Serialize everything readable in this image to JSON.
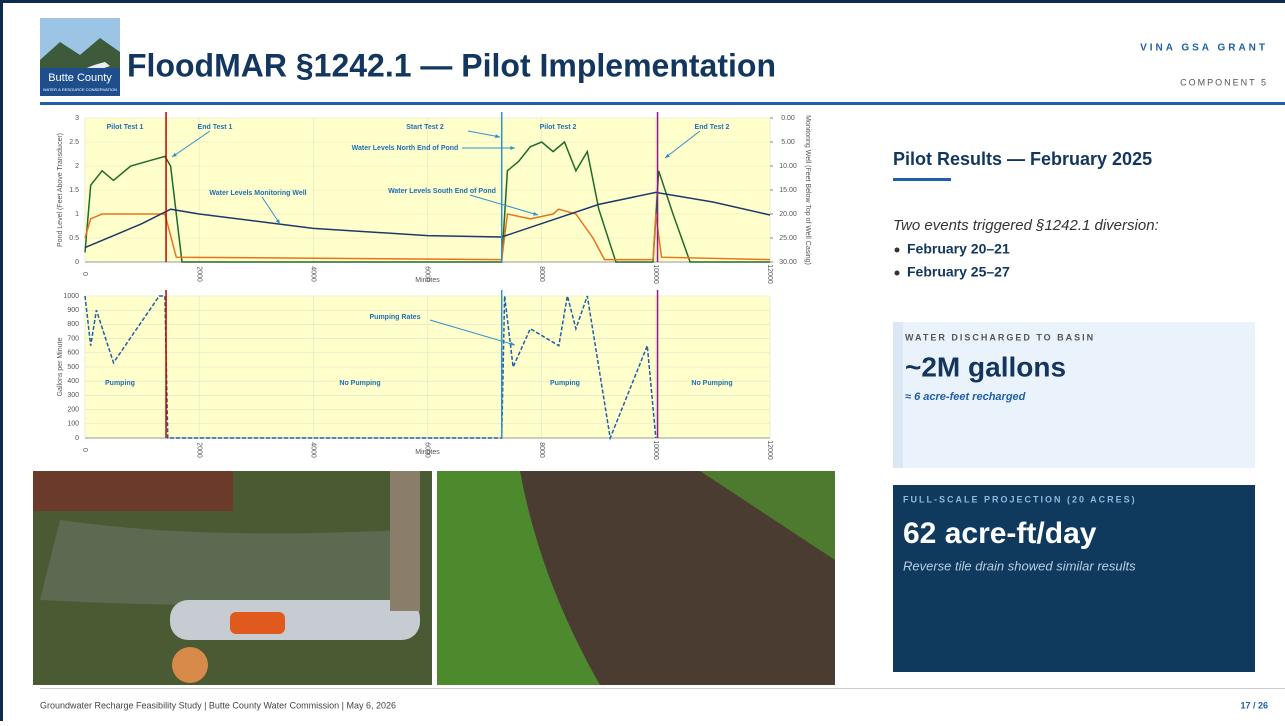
{
  "header": {
    "logo_name": "Butte County",
    "logo_sub": "WATER & RESOURCE CONSERVATION",
    "title": "FloodMAR §1242.1 — Pilot Implementation",
    "grant": "VINA GSA GRANT",
    "component": "COMPONENT 5"
  },
  "charts": [
    {
      "type": "line",
      "xlabel": "Minutes",
      "ylabel": "Pond Level (Feet Above Transducer)",
      "y2label": "Monitoring Well (Feet Below Top of Well Casing)",
      "xlim": [
        0,
        12000
      ],
      "xticks": [
        0,
        2000,
        4000,
        6000,
        8000,
        10000,
        12000
      ],
      "ylim": [
        0,
        3
      ],
      "yticks": [
        0,
        0.5,
        1,
        1.5,
        2,
        2.5,
        3
      ],
      "y2lim": [
        30,
        0
      ],
      "y2ticks": [
        {
          "value": 0,
          "label": "0.00"
        },
        {
          "value": 5,
          "label": "5.00"
        },
        {
          "value": 10,
          "label": "10.00"
        },
        {
          "value": 15,
          "label": "15.00"
        },
        {
          "value": 20,
          "label": "20.00"
        },
        {
          "value": 25,
          "label": "25.00"
        },
        {
          "value": 30,
          "label": "30.00"
        }
      ],
      "grid": true,
      "background": "#ffffcc",
      "events": [
        {
          "x": 1420,
          "color": "#c00000"
        },
        {
          "x": 7300,
          "color": "#2e8fd0"
        },
        {
          "x": 10030,
          "color": "#8b1a8b"
        }
      ],
      "annotations": [
        "Pilot Test 1",
        "End Test 1",
        "Start Test 2",
        "Pilot Test 2",
        "End Test 2",
        "Water Levels North End of Pond",
        "Water Levels Monitoring Well",
        "Water Levels South End of Pond"
      ],
      "series": [
        {
          "color": "#1e6b2a",
          "x": [
            0,
            100,
            300,
            500,
            800,
            1100,
            1400,
            1500,
            1700,
            7300,
            7400,
            7600,
            7800,
            8000,
            8200,
            8400,
            8600,
            8800,
            9000,
            9300,
            9950,
            10050,
            10300,
            10600,
            12000
          ],
          "values": [
            0.2,
            1.6,
            1.9,
            1.7,
            2.0,
            2.1,
            2.2,
            2.0,
            0,
            0,
            1.9,
            2.1,
            2.4,
            2.5,
            2.3,
            2.5,
            1.9,
            2.3,
            1.1,
            0,
            0,
            1.9,
            1.0,
            0,
            0
          ]
        },
        {
          "color": "#e8731c",
          "x": [
            0,
            100,
            300,
            1400,
            1600,
            7300,
            7400,
            7800,
            8200,
            8300,
            8600,
            8900,
            9100,
            9950,
            10000,
            10100,
            12000
          ],
          "values": [
            0.5,
            0.9,
            1.0,
            1.0,
            0.1,
            0.05,
            1.0,
            0.9,
            1.0,
            1.1,
            1.0,
            0.5,
            0.05,
            0.05,
            1.0,
            0.1,
            0.05
          ]
        },
        {
          "color": "#1b3a6b",
          "axis": "y2",
          "x": [
            0,
            1000,
            1500,
            2000,
            4000,
            6000,
            7300,
            8000,
            9000,
            10000,
            11000,
            12000
          ],
          "values": [
            27,
            22,
            19,
            20,
            23,
            24.5,
            24.8,
            22,
            18,
            15.5,
            17.5,
            20.2
          ]
        }
      ]
    },
    {
      "type": "line",
      "xlabel": "Minutes",
      "ylabel": "Gallons per Minute",
      "xlim": [
        0,
        12000
      ],
      "xticks": [
        0,
        2000,
        4000,
        6000,
        8000,
        10000,
        12000
      ],
      "ylim": [
        0,
        1000
      ],
      "yticks": [
        0,
        100,
        200,
        300,
        400,
        500,
        600,
        700,
        800,
        900,
        1000
      ],
      "grid": true,
      "background": "#ffffcc",
      "events": [
        {
          "x": 1420,
          "color": "#c00000"
        },
        {
          "x": 7300,
          "color": "#2e8fd0"
        },
        {
          "x": 10030,
          "color": "#8b1a8b"
        }
      ],
      "annotations": [
        "Pumping Rates",
        "Pumping",
        "No Pumping",
        "Pumping",
        "No Pumping"
      ],
      "series": [
        {
          "color": "#1f5fa8",
          "dashed": true,
          "x": [
            0,
            100,
            200,
            500,
            1300,
            1400,
            1450,
            7300,
            7350,
            7500,
            7800,
            8300,
            8450,
            8600,
            8800,
            9200,
            9850,
            10000
          ],
          "values": [
            1000,
            650,
            900,
            530,
            1000,
            1000,
            0,
            0,
            1000,
            500,
            770,
            650,
            1000,
            770,
            1000,
            0,
            650,
            0
          ]
        }
      ]
    }
  ],
  "results": {
    "heading": "Pilot Results — February 2025",
    "intro": "Two events triggered §1242.1 diversion:",
    "events": [
      "February 20–21",
      "February 25–27"
    ]
  },
  "discharge": {
    "label": "WATER DISCHARGED TO BASIN",
    "value": "~2M gallons",
    "note": "≈ 6 acre-feet recharged"
  },
  "projection": {
    "label": "FULL-SCALE PROJECTION (20 ACRES)",
    "value": "62 acre-ft/day",
    "note": "Reverse tile drain showed similar results"
  },
  "footer": {
    "text": "Groundwater Recharge Feasibility Study | Butte County Water Commission | May 6, 2026",
    "page": "17 / 26"
  }
}
